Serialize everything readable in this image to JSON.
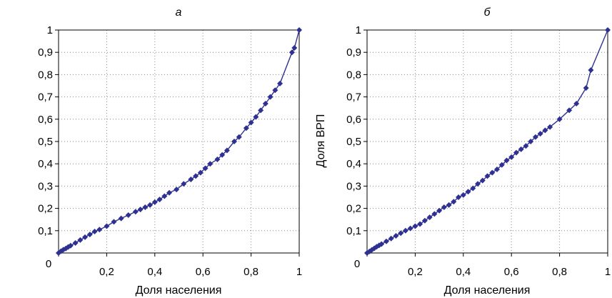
{
  "chart_data": [
    {
      "type": "line",
      "title": "а",
      "xlabel": "Доля населения",
      "ylabel": "",
      "xlim": [
        0,
        1
      ],
      "ylim": [
        0,
        1
      ],
      "x_ticks": [
        "0",
        "0,2",
        "0,4",
        "0,6",
        "0,8",
        "1"
      ],
      "y_ticks": [
        "0,1",
        "0,2",
        "0,3",
        "0,4",
        "0,5",
        "0,6",
        "0,7",
        "0,8",
        "0,9",
        "1"
      ],
      "grid": true,
      "line_color": "#2e3192",
      "marker": "diamond",
      "series": [
        {
          "x": [
            0,
            0.01,
            0.02,
            0.03,
            0.04,
            0.05,
            0.07,
            0.09,
            0.11,
            0.13,
            0.15,
            0.17,
            0.2,
            0.23,
            0.26,
            0.29,
            0.32,
            0.34,
            0.36,
            0.38,
            0.4,
            0.42,
            0.44,
            0.46,
            0.49,
            0.52,
            0.55,
            0.57,
            0.59,
            0.61,
            0.63,
            0.66,
            0.68,
            0.7,
            0.73,
            0.75,
            0.78,
            0.8,
            0.82,
            0.84,
            0.86,
            0.88,
            0.9,
            0.92,
            0.97,
            0.98,
            1.0
          ],
          "y": [
            0,
            0.008,
            0.015,
            0.02,
            0.027,
            0.033,
            0.045,
            0.058,
            0.071,
            0.083,
            0.096,
            0.105,
            0.12,
            0.14,
            0.155,
            0.17,
            0.185,
            0.195,
            0.205,
            0.215,
            0.228,
            0.24,
            0.255,
            0.27,
            0.285,
            0.31,
            0.33,
            0.345,
            0.36,
            0.38,
            0.4,
            0.42,
            0.44,
            0.46,
            0.5,
            0.52,
            0.56,
            0.585,
            0.61,
            0.64,
            0.67,
            0.7,
            0.73,
            0.76,
            0.9,
            0.92,
            1.0
          ]
        }
      ]
    },
    {
      "type": "line",
      "title": "б",
      "xlabel": "Доля населения",
      "ylabel": "Доля ВРП",
      "xlim": [
        0,
        1
      ],
      "ylim": [
        0,
        1
      ],
      "x_ticks": [
        "0",
        "0,2",
        "0,4",
        "0,6",
        "0,8",
        "1"
      ],
      "y_ticks": [
        "0,1",
        "0,2",
        "0,3",
        "0,4",
        "0,5",
        "0,6",
        "0,7",
        "0,8",
        "0,9",
        "1"
      ],
      "grid": true,
      "line_color": "#2e3192",
      "marker": "diamond",
      "series": [
        {
          "x": [
            0,
            0.01,
            0.02,
            0.03,
            0.04,
            0.05,
            0.06,
            0.08,
            0.1,
            0.12,
            0.14,
            0.16,
            0.18,
            0.2,
            0.22,
            0.24,
            0.26,
            0.28,
            0.3,
            0.32,
            0.34,
            0.36,
            0.38,
            0.4,
            0.42,
            0.44,
            0.46,
            0.48,
            0.5,
            0.52,
            0.54,
            0.56,
            0.58,
            0.6,
            0.62,
            0.64,
            0.66,
            0.68,
            0.7,
            0.72,
            0.74,
            0.76,
            0.8,
            0.84,
            0.87,
            0.91,
            0.93,
            1.0
          ],
          "y": [
            0,
            0.007,
            0.014,
            0.021,
            0.028,
            0.034,
            0.04,
            0.052,
            0.065,
            0.077,
            0.089,
            0.1,
            0.11,
            0.12,
            0.13,
            0.145,
            0.16,
            0.175,
            0.19,
            0.205,
            0.215,
            0.23,
            0.25,
            0.26,
            0.275,
            0.29,
            0.31,
            0.325,
            0.345,
            0.36,
            0.375,
            0.395,
            0.415,
            0.43,
            0.45,
            0.465,
            0.48,
            0.5,
            0.52,
            0.535,
            0.55,
            0.565,
            0.6,
            0.64,
            0.67,
            0.74,
            0.82,
            1.0
          ]
        }
      ]
    }
  ]
}
